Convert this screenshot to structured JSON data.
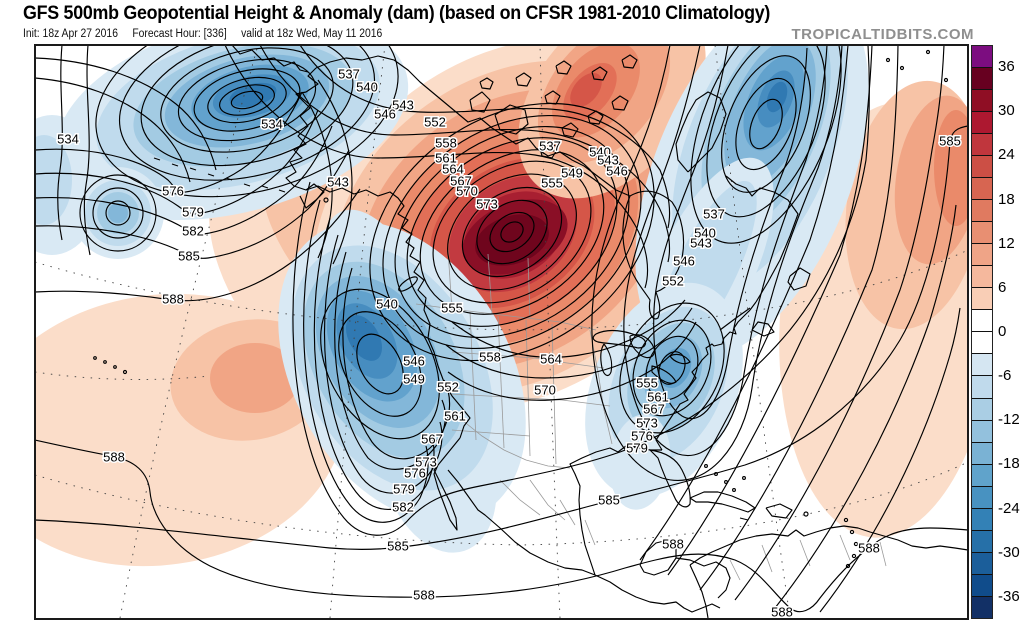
{
  "header": {
    "title": "GFS 500mb Geopotential Height & Anomaly (dam) (based on CFSR 1981-2010 Climatology)",
    "init": "Init: 18z Apr 27 2016",
    "forecast_hour": "Forecast Hour: [336]",
    "valid": "valid at 18z Wed, May 11 2016",
    "watermark": "TROPICALTIDBITS.COM"
  },
  "chart_data": {
    "type": "heatmap",
    "title": "GFS 500mb Geopotential Height & Anomaly (dam)",
    "subtitle": "based on CFSR 1981-2010 Climatology",
    "model": "GFS",
    "level": "500mb",
    "units": "dam",
    "init_time": "18z Apr 27 2016",
    "forecast_hour": 336,
    "valid_time": "18z Wed, May 11 2016",
    "contour_interval": 3,
    "contour_min": 534,
    "contour_max": 588,
    "legend_position": "right",
    "anomaly_colorbar": {
      "ticks": [
        36,
        30,
        24,
        18,
        12,
        6,
        0,
        -6,
        -12,
        -18,
        -24,
        -30,
        -36
      ],
      "cell_step": 3,
      "cells_top_to_bottom": [
        "#7c0d80",
        "#670020",
        "#8f0e24",
        "#ad1830",
        "#c0363d",
        "#cc4f45",
        "#d76551",
        "#e07a60",
        "#e88f72",
        "#efa487",
        "#f5b89d",
        "#f9ceb6",
        "#ffffff",
        "#ffffff",
        "#d5e6f2",
        "#c0daec",
        "#aacee4",
        "#93c1dd",
        "#7ab2d4",
        "#60a3cb",
        "#4892c1",
        "#3381b6",
        "#2670a8",
        "#1b5e9a",
        "#104c8b",
        "#123066"
      ]
    },
    "contour_labels": [
      [
        534,
        272,
        124
      ],
      [
        537,
        349,
        74
      ],
      [
        540,
        367,
        87
      ],
      [
        543,
        403,
        105
      ],
      [
        546,
        385,
        114
      ],
      [
        552,
        435,
        122
      ],
      [
        558,
        446,
        143
      ],
      [
        561,
        446,
        158
      ],
      [
        564,
        453,
        169
      ],
      [
        567,
        461,
        181
      ],
      [
        570,
        467,
        191
      ],
      [
        573,
        487,
        204
      ],
      [
        534,
        68,
        139
      ],
      [
        537,
        550,
        146
      ],
      [
        555,
        552,
        183
      ],
      [
        549,
        572,
        173
      ],
      [
        540,
        600,
        152
      ],
      [
        543,
        608,
        160
      ],
      [
        546,
        617,
        171
      ],
      [
        543,
        338,
        182
      ],
      [
        576,
        173,
        191
      ],
      [
        579,
        193,
        212
      ],
      [
        582,
        193,
        231
      ],
      [
        585,
        189,
        256
      ],
      [
        588,
        173,
        299
      ],
      [
        540,
        387,
        304
      ],
      [
        555,
        452,
        308
      ],
      [
        546,
        414,
        361
      ],
      [
        549,
        414,
        379
      ],
      [
        552,
        448,
        387
      ],
      [
        558,
        490,
        357
      ],
      [
        564,
        551,
        359
      ],
      [
        570,
        545,
        390
      ],
      [
        561,
        455,
        416
      ],
      [
        567,
        432,
        439
      ],
      [
        573,
        426,
        462
      ],
      [
        576,
        415,
        473
      ],
      [
        579,
        404,
        489
      ],
      [
        582,
        403,
        507
      ],
      [
        537,
        714,
        214
      ],
      [
        540,
        705,
        233
      ],
      [
        543,
        701,
        243
      ],
      [
        546,
        684,
        261
      ],
      [
        552,
        673,
        281
      ],
      [
        555,
        647,
        383
      ],
      [
        561,
        658,
        397
      ],
      [
        567,
        654,
        409
      ],
      [
        573,
        647,
        423
      ],
      [
        576,
        642,
        436
      ],
      [
        579,
        637,
        448
      ],
      [
        585,
        950,
        141
      ],
      [
        588,
        114,
        457
      ],
      [
        585,
        398,
        546
      ],
      [
        588,
        424,
        595
      ],
      [
        585,
        609,
        500
      ],
      [
        588,
        673,
        544
      ],
      [
        588,
        782,
        612
      ],
      [
        588,
        869,
        548
      ]
    ],
    "features": [
      {
        "feature": "strong positive height anomaly (> +36 dam)",
        "location": "Hudson Bay / central Canada"
      },
      {
        "feature": "negative height anomaly",
        "location": "Bering Sea / Aleutians"
      },
      {
        "feature": "negative height anomaly",
        "location": "western United States"
      },
      {
        "feature": "negative height anomaly",
        "location": "Great Lakes / northeast North America into northwest Atlantic"
      },
      {
        "feature": "positive height anomaly",
        "location": "subtropical central Pacific"
      },
      {
        "feature": "positive height anomaly",
        "location": "central North Atlantic"
      }
    ]
  }
}
